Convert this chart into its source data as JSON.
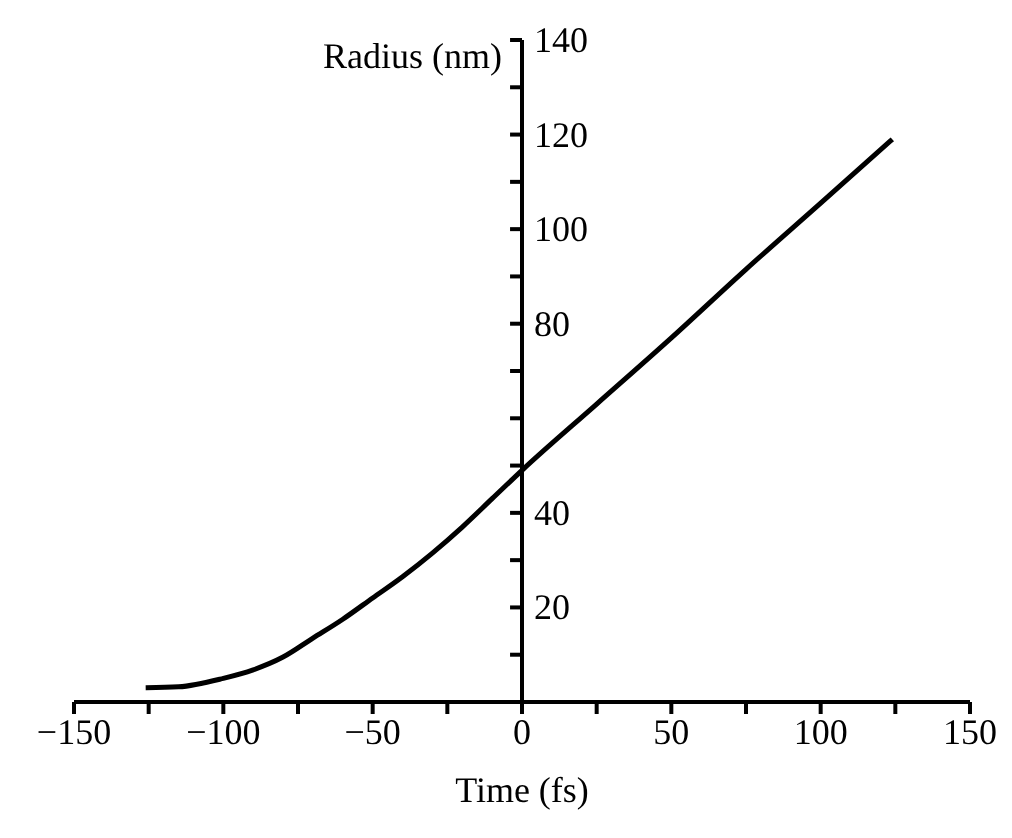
{
  "chart_data": {
    "type": "line",
    "xlabel": "Time (fs)",
    "ylabel": "Radius (nm)",
    "x": [
      -126,
      -115,
      -100,
      -90,
      -80,
      -70,
      -60,
      -50,
      -40,
      -30,
      -20,
      -10,
      0,
      25,
      50,
      75,
      100,
      124
    ],
    "series": [
      {
        "color": "#000000",
        "values": [
          3,
          3.2,
          5,
          6.8,
          9.5,
          13.5,
          17.5,
          22,
          26.5,
          31.5,
          37,
          43,
          49,
          63,
          77,
          91.5,
          105.5,
          119
        ]
      }
    ],
    "xlim": [
      -150,
      150
    ],
    "ylim": [
      0,
      140
    ],
    "xticks": [
      -150,
      {
        "value": -125,
        "label": null
      },
      -100,
      {
        "value": -75,
        "label": null
      },
      -50,
      {
        "value": -25,
        "label": null
      },
      0,
      {
        "value": 25,
        "label": null
      },
      50,
      {
        "value": 75,
        "label": null
      },
      100,
      {
        "value": 125,
        "label": null
      },
      150
    ],
    "yticks": [
      {
        "value": 10,
        "label": null
      },
      20,
      {
        "value": 30,
        "label": null
      },
      40,
      {
        "value": 50,
        "label": null
      },
      {
        "value": 60,
        "label": null
      },
      {
        "value": 70,
        "label": null
      },
      80,
      {
        "value": 90,
        "label": null
      },
      100,
      {
        "value": 110,
        "label": null
      },
      120,
      {
        "value": 130,
        "label": null
      },
      140
    ],
    "grid": false,
    "legend": false,
    "marker": "none",
    "line_style": "solid"
  }
}
